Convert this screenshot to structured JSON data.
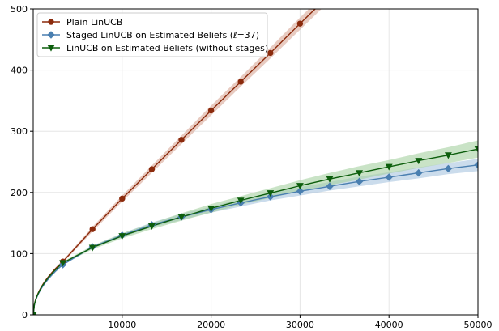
{
  "chart_data": {
    "type": "line",
    "title": "",
    "xlabel": "",
    "ylabel": "",
    "xlim": [
      0,
      50000
    ],
    "ylim": [
      0,
      500
    ],
    "x_ticks": [
      10000,
      20000,
      30000,
      40000,
      50000
    ],
    "y_ticks": [
      0,
      100,
      200,
      300,
      400,
      500
    ],
    "x_tick_labels": [
      "10000",
      "20000",
      "30000",
      "40000",
      "50000"
    ],
    "y_tick_labels": [
      "0",
      "100",
      "200",
      "300",
      "400",
      "500"
    ],
    "grid": true,
    "legend_position": "top-left",
    "series": [
      {
        "name": "Plain LinUCB",
        "color": "#8b2a0c",
        "band_color": "#d9a898",
        "marker": "circle",
        "x": [
          0,
          3333,
          6667,
          10000,
          13333,
          16667,
          20000,
          23333,
          26667,
          30000,
          33333
        ],
        "y": [
          0,
          87,
          140,
          190,
          238,
          286,
          334,
          381,
          428,
          476,
          523
        ],
        "band": [
          0,
          2,
          4,
          5,
          6,
          7,
          8,
          8,
          9,
          10,
          10
        ]
      },
      {
        "name": "Staged LinUCB on Estimated Beliefs (ℓ=37)",
        "color": "#4a7fb0",
        "band_color": "#a9c4e0",
        "marker": "diamond",
        "x": [
          0,
          3333,
          6667,
          10000,
          13333,
          16667,
          20000,
          23333,
          26667,
          30000,
          33333,
          36667,
          40000,
          43333,
          46667,
          50000
        ],
        "y": [
          0,
          82,
          111,
          130,
          147,
          160,
          172,
          183,
          193,
          202,
          210,
          218,
          225,
          232,
          239,
          245
        ],
        "band": [
          0,
          1,
          2,
          3,
          4,
          5,
          5,
          6,
          6,
          7,
          7,
          8,
          8,
          9,
          9,
          10
        ]
      },
      {
        "name": "LinUCB on Estimated Beliefs (without stages)",
        "color": "#0d5e0d",
        "band_color": "#a5d0a0",
        "marker": "triangle-down",
        "x": [
          0,
          3333,
          6667,
          10000,
          13333,
          16667,
          20000,
          23333,
          26667,
          30000,
          33333,
          36667,
          40000,
          43333,
          46667,
          50000
        ],
        "y": [
          0,
          85,
          110,
          129,
          145,
          160,
          174,
          187,
          199,
          211,
          222,
          232,
          242,
          252,
          261,
          271
        ],
        "band": [
          0,
          2,
          3,
          4,
          5,
          6,
          7,
          7,
          8,
          9,
          10,
          11,
          11,
          12,
          13,
          14
        ]
      }
    ]
  }
}
